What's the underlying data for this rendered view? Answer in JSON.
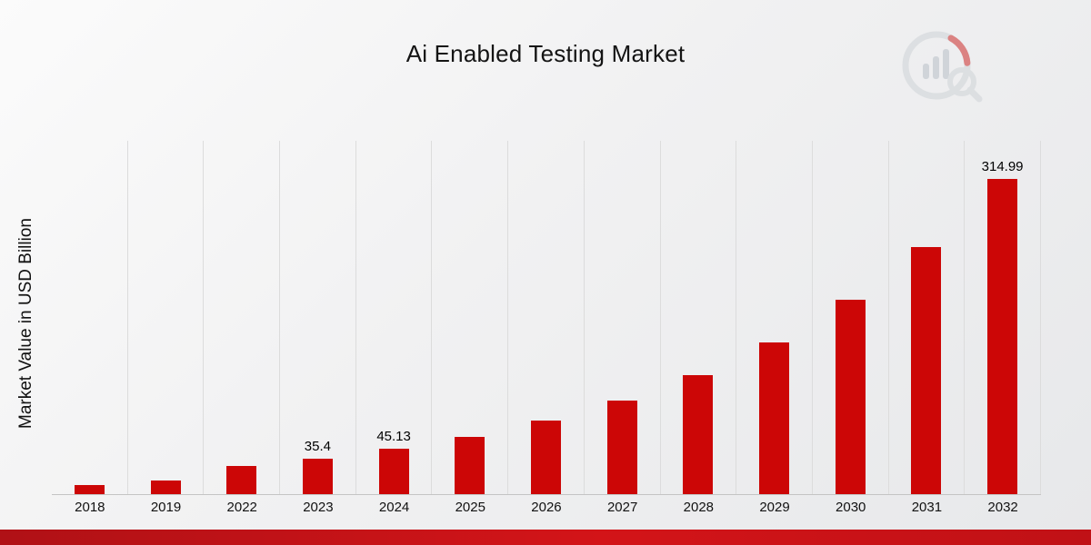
{
  "title": "Ai Enabled Testing Market",
  "chart_data": {
    "type": "bar",
    "title": "Ai Enabled Testing Market",
    "xlabel": "",
    "ylabel": "Market Value in USD Billion",
    "bar_color": "#cc0606",
    "ylim": [
      0,
      353
    ],
    "grid": "vertical",
    "legend": "none",
    "categories": [
      "2018",
      "2019",
      "2022",
      "2023",
      "2024",
      "2025",
      "2026",
      "2027",
      "2028",
      "2029",
      "2030",
      "2031",
      "2032"
    ],
    "values": [
      9,
      13.4,
      27.8,
      35.4,
      45.13,
      57.5,
      73.3,
      93.5,
      119.2,
      152.0,
      193.8,
      247.1,
      314.99
    ],
    "data_labels": [
      "",
      "",
      "",
      "35.4",
      "45.13",
      "",
      "",
      "",
      "",
      "",
      "",
      "",
      "314.99"
    ]
  },
  "footer": {
    "stripe_color": "#c81014"
  }
}
